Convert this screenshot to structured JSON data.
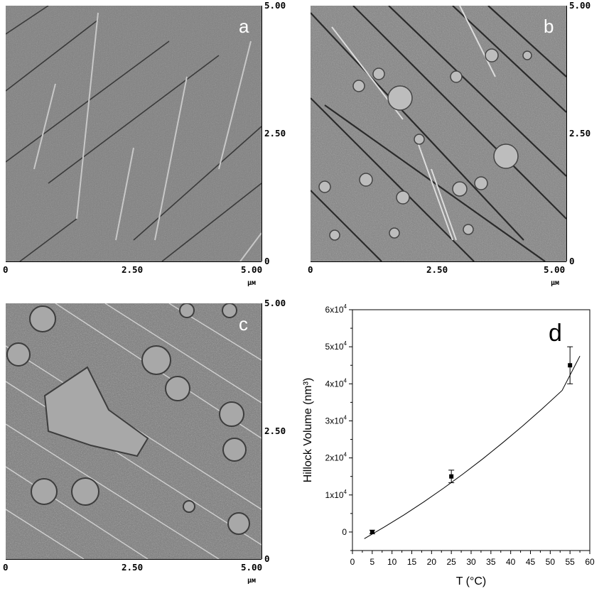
{
  "panels": [
    {
      "letter": "a",
      "xticks": [
        "0",
        "2.50",
        "5.00"
      ],
      "yticks": [
        "5.00",
        "2.50",
        "0"
      ],
      "unit": "μм"
    },
    {
      "letter": "b",
      "xticks": [
        "0",
        "2.50",
        "5.00"
      ],
      "yticks": [
        "5.00",
        "2.50",
        "0"
      ],
      "unit": "μм"
    },
    {
      "letter": "c",
      "xticks": [
        "0",
        "2.50",
        "5.00"
      ],
      "yticks": [
        "5.00",
        "2.50",
        "0"
      ],
      "unit": "μм"
    }
  ],
  "chart_data": {
    "type": "scatter",
    "panel_letter": "d",
    "xlabel": "T (°C)",
    "ylabel": "Hillock Volume (nm³)",
    "xlim": [
      0,
      60
    ],
    "ylim": [
      -5000,
      60000
    ],
    "x_ticks": [
      0,
      5,
      10,
      15,
      20,
      25,
      30,
      35,
      40,
      45,
      50,
      55,
      60
    ],
    "y_tick_labels": [
      {
        "value": 0,
        "label": "0"
      },
      {
        "value": 10000,
        "label": "1x10",
        "exp": "4"
      },
      {
        "value": 20000,
        "label": "2x10",
        "exp": "4"
      },
      {
        "value": 30000,
        "label": "3x10",
        "exp": "4"
      },
      {
        "value": 40000,
        "label": "4x10",
        "exp": "4"
      },
      {
        "value": 50000,
        "label": "5x10",
        "exp": "4"
      },
      {
        "value": 60000,
        "label": "6x10",
        "exp": "4"
      }
    ],
    "points": [
      {
        "x": 5,
        "y": 0,
        "err": 500
      },
      {
        "x": 25,
        "y": 15000,
        "err": 1700
      },
      {
        "x": 55,
        "y": 45000,
        "err": 5000
      }
    ],
    "fit_curve": {
      "x": [
        3,
        8,
        13,
        18,
        23,
        28,
        33,
        38,
        43,
        48,
        53,
        57.5
      ],
      "y": [
        -1800,
        1300,
        4600,
        8100,
        11800,
        15700,
        19800,
        24100,
        28600,
        33300,
        38200,
        47500
      ]
    }
  }
}
